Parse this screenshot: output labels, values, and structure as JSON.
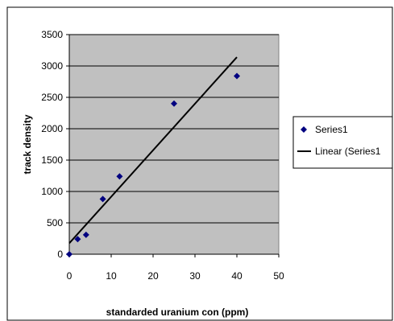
{
  "chart_data": {
    "type": "scatter",
    "title": "",
    "xlabel": "standarded uranium con (ppm)",
    "ylabel": "track density",
    "xlim": [
      0,
      50
    ],
    "ylim": [
      0,
      3500
    ],
    "xticks": [
      0,
      10,
      20,
      30,
      40,
      50
    ],
    "yticks": [
      0,
      500,
      1000,
      1500,
      2000,
      2500,
      3000,
      3500
    ],
    "grid": "horizontal",
    "legend_position": "right",
    "plot_background": "#c0c0c0",
    "series": [
      {
        "name": "Series1",
        "marker": "diamond",
        "color": "#000080",
        "x": [
          0,
          2,
          4,
          8,
          12,
          25,
          40
        ],
        "y": [
          0,
          240,
          310,
          880,
          1240,
          2400,
          2840
        ]
      }
    ],
    "trendline": {
      "name": "Linear (Series1",
      "type": "linear",
      "color": "#000000",
      "x": [
        0,
        40
      ],
      "y": [
        175,
        3140
      ]
    }
  }
}
